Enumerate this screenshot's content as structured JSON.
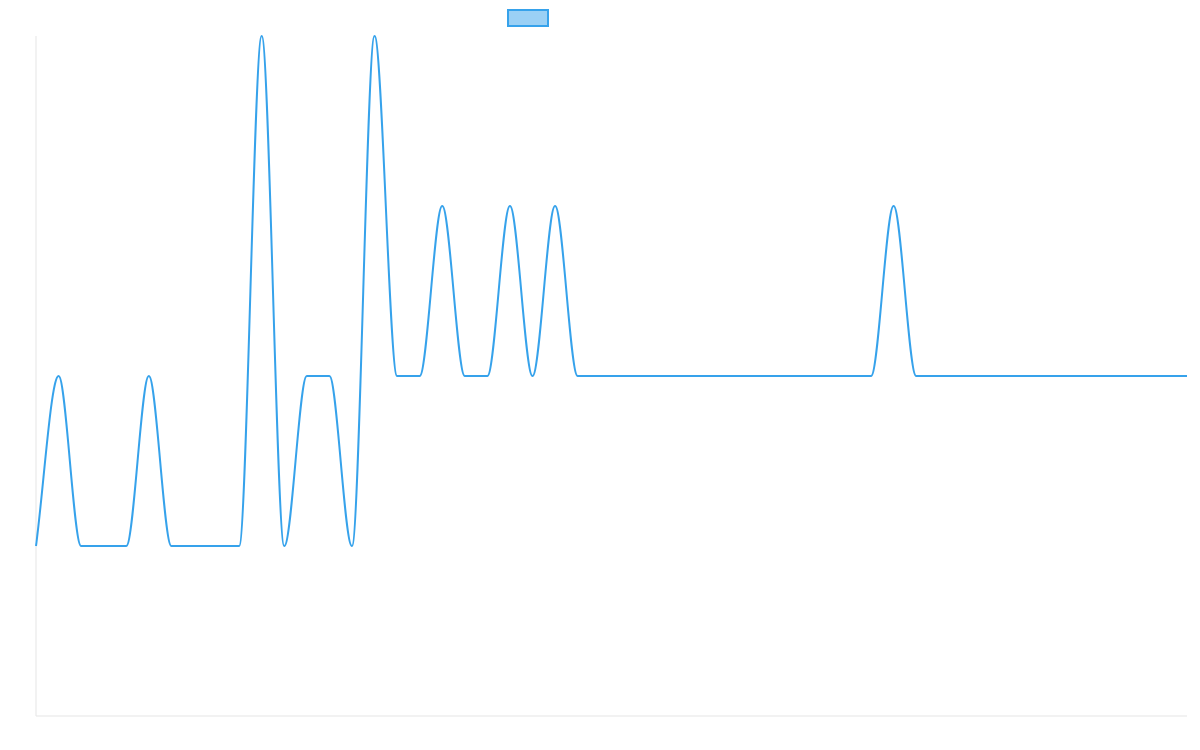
{
  "chart_data": {
    "type": "line",
    "title": "",
    "xlabel": "",
    "ylabel": "",
    "x": [
      0,
      1,
      2,
      3,
      4,
      5,
      6,
      7,
      8,
      9,
      10,
      11,
      12,
      13,
      14,
      15,
      16,
      17,
      18,
      19,
      20,
      21,
      22,
      23,
      24,
      25,
      26,
      27,
      28,
      29,
      30,
      31,
      32,
      33,
      34,
      35,
      36,
      37,
      38,
      39,
      40,
      41,
      42,
      43,
      44,
      45,
      46,
      47,
      48,
      49,
      50,
      51
    ],
    "ylim": [
      -1,
      3
    ],
    "grid": false,
    "legend": "top-center",
    "series": [
      {
        "name": "",
        "color": "#36a2eb",
        "fill": "rgba(54,162,235,0.5)",
        "values": [
          0,
          1,
          0,
          0,
          0,
          1,
          0,
          0,
          0,
          0,
          3,
          0,
          1,
          1,
          0,
          3,
          1,
          1,
          2,
          1,
          1,
          2,
          1,
          2,
          1,
          1,
          1,
          1,
          1,
          1,
          1,
          1,
          1,
          1,
          1,
          1,
          1,
          1,
          2,
          1,
          1,
          1,
          1,
          1,
          1,
          1,
          1,
          1,
          1,
          1,
          1,
          1
        ]
      }
    ]
  }
}
